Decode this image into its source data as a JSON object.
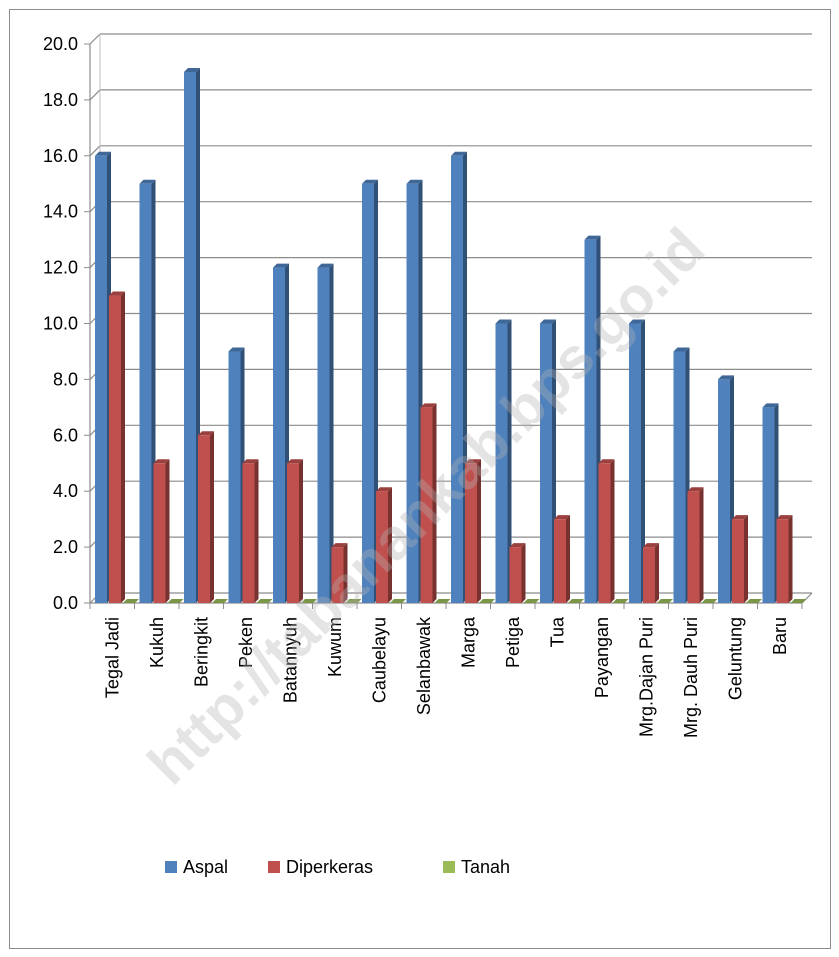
{
  "watermark": "http://tabanankab.bps.go.id",
  "chart_data": {
    "type": "bar",
    "title": "",
    "xlabel": "",
    "ylabel": "",
    "ylim": [
      0,
      20
    ],
    "y_ticks": [
      "0.0",
      "2.0",
      "4.0",
      "6.0",
      "8.0",
      "10.0",
      "12.0",
      "14.0",
      "16.0",
      "18.0",
      "20.0"
    ],
    "grid": true,
    "legend_position": "bottom",
    "categories": [
      "Tegal Jadi",
      "Kukuh",
      "Beringkit",
      "Peken",
      "Batannyuh",
      "Kuwum",
      "Caubelayu",
      "Selanbawak",
      "Marga",
      "Petiga",
      "Tua",
      "Payangan",
      "Mrg.Dajan Puri",
      "Mrg. Dauh Puri",
      "Geluntung",
      "Baru"
    ],
    "series": [
      {
        "name": "Aspal",
        "color": "#4f81bd",
        "values": [
          16,
          15,
          19,
          9,
          12,
          12,
          15,
          15,
          16,
          10,
          10,
          13,
          10,
          9,
          8,
          7
        ]
      },
      {
        "name": "Diperkeras",
        "color": "#c0504d",
        "values": [
          11,
          5,
          6,
          5,
          5,
          2,
          4,
          7,
          5,
          2,
          3,
          5,
          2,
          4,
          3,
          3
        ]
      },
      {
        "name": "Tanah",
        "color": "#9bbb59",
        "values": [
          0,
          0,
          0,
          0,
          0,
          0,
          0,
          0,
          0,
          0,
          0,
          0,
          0,
          0,
          0,
          0
        ]
      }
    ]
  }
}
